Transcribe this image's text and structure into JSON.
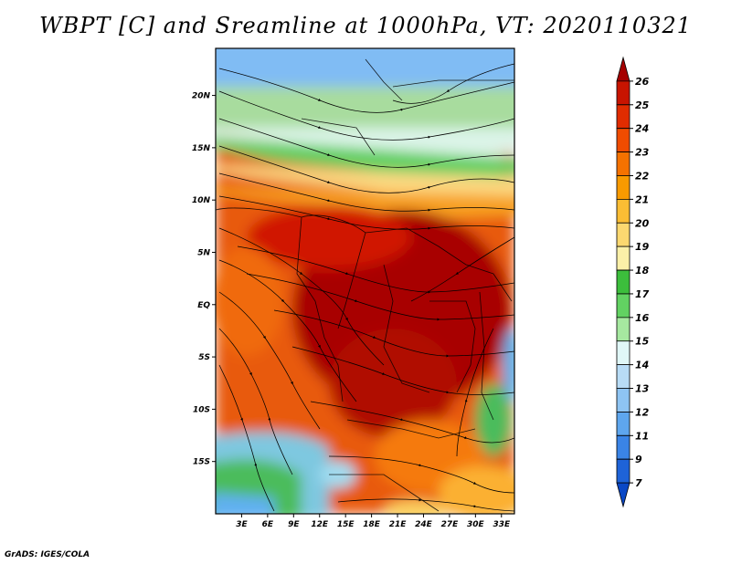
{
  "title": "WBPT [C] and Sreamline at 1000hPa, VT: 2020110321",
  "footer": "GrADS: IGES/COLA",
  "map": {
    "lat_labels": [
      "20N",
      "15N",
      "10N",
      "5N",
      "EQ",
      "5S",
      "10S",
      "15S"
    ],
    "lon_labels": [
      "3E",
      "6E",
      "9E",
      "12E",
      "15E",
      "18E",
      "21E",
      "24E",
      "27E",
      "30E",
      "33E"
    ],
    "lat_values": [
      20,
      15,
      10,
      5,
      0,
      -5,
      -10,
      -15
    ],
    "lon_values": [
      3,
      6,
      9,
      12,
      15,
      18,
      21,
      24,
      27,
      30,
      33
    ],
    "lon_range": [
      0,
      34.5
    ],
    "lat_range": [
      -20,
      24.5
    ]
  },
  "colorbar": {
    "labels": [
      "26",
      "25",
      "24",
      "23",
      "22",
      "21",
      "20",
      "19",
      "18",
      "17",
      "16",
      "15",
      "14",
      "13",
      "12",
      "11",
      "9",
      "7"
    ],
    "colors": [
      "#a50000",
      "#c81400",
      "#e02c00",
      "#f04c00",
      "#f57200",
      "#f89a00",
      "#fbbd34",
      "#fcd870",
      "#fbf0a8",
      "#3cbe3c",
      "#62d262",
      "#a6e8a0",
      "#e0f7f7",
      "#b8dcf6",
      "#8ec4f3",
      "#5ea6ee",
      "#3a84e6",
      "#1e63d8",
      "#0a48c6"
    ]
  }
}
